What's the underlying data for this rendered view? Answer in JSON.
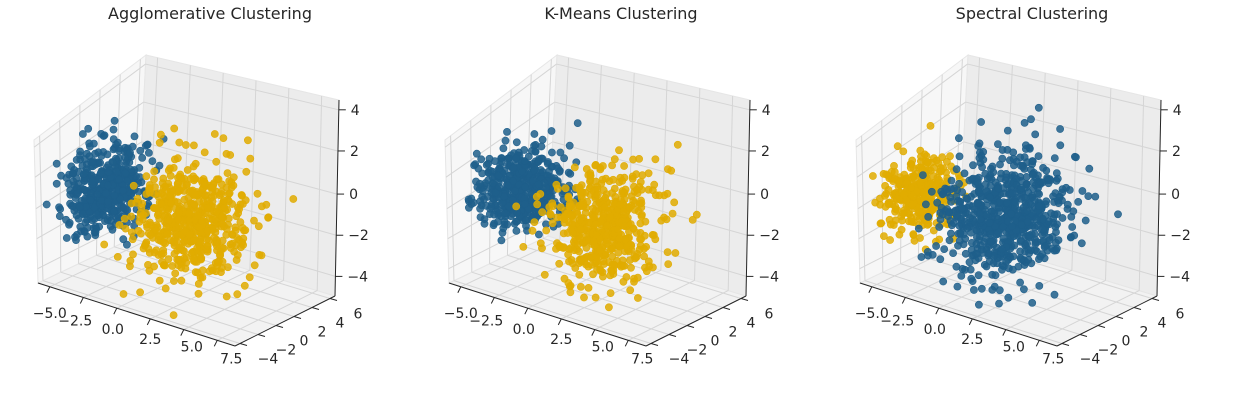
{
  "chart_data": [
    {
      "type": "scatter3d",
      "title": "Agglomerative Clustering",
      "xticks": [
        "−5.0",
        "−2.5",
        "0.0",
        "2.5",
        "5.0",
        "7.5"
      ],
      "yticks": [
        "−4",
        "−2",
        "0",
        "2",
        "4",
        "6"
      ],
      "zticks": [
        "4",
        "2",
        "0",
        "−2",
        "−4"
      ],
      "xlim": [
        -6,
        9
      ],
      "ylim": [
        -4,
        7
      ],
      "zlim": [
        -5,
        5
      ],
      "grid": true,
      "series": [
        {
          "color": "#1f5f8b",
          "center": [
            -3.5,
            0.0,
            0.5
          ],
          "spread": [
            1.2,
            1.5,
            1.2
          ],
          "n": 450
        },
        {
          "color": "#e0ac00",
          "center": [
            2.5,
            0.5,
            -0.5
          ],
          "spread": [
            1.7,
            1.9,
            1.6
          ],
          "n": 550
        }
      ]
    },
    {
      "type": "scatter3d",
      "title": "K-Means Clustering",
      "xticks": [
        "−5.0",
        "−2.5",
        "0.0",
        "2.5",
        "5.0",
        "7.5"
      ],
      "yticks": [
        "−4",
        "−2",
        "0",
        "2",
        "4",
        "6"
      ],
      "zticks": [
        "4",
        "2",
        "0",
        "−2",
        "−4"
      ],
      "xlim": [
        -6,
        9
      ],
      "ylim": [
        -4,
        7
      ],
      "zlim": [
        -5,
        5
      ],
      "grid": true,
      "series": [
        {
          "color": "#1f5f8b",
          "center": [
            -3.3,
            0.0,
            0.5
          ],
          "spread": [
            1.3,
            1.5,
            1.2
          ],
          "n": 480
        },
        {
          "color": "#e0ac00",
          "center": [
            2.8,
            0.5,
            -0.6
          ],
          "spread": [
            1.6,
            1.8,
            1.5
          ],
          "n": 520
        }
      ]
    },
    {
      "type": "scatter3d",
      "title": "Spectral Clustering",
      "xticks": [
        "−5.0",
        "−2.5",
        "0.0",
        "2.5",
        "5.0",
        "7.5"
      ],
      "yticks": [
        "−4",
        "−2",
        "0",
        "2",
        "4",
        "6"
      ],
      "zticks": [
        "4",
        "2",
        "0",
        "−2",
        "−4"
      ],
      "xlim": [
        -6,
        9
      ],
      "ylim": [
        -4,
        7
      ],
      "zlim": [
        -5,
        5
      ],
      "grid": true,
      "series": [
        {
          "color": "#e0ac00",
          "center": [
            -4.0,
            -0.3,
            0.2
          ],
          "spread": [
            1.0,
            1.3,
            1.1
          ],
          "n": 300
        },
        {
          "color": "#1f5f8b",
          "center": [
            1.8,
            0.5,
            -0.2
          ],
          "spread": [
            2.0,
            2.0,
            1.7
          ],
          "n": 700
        }
      ]
    }
  ]
}
